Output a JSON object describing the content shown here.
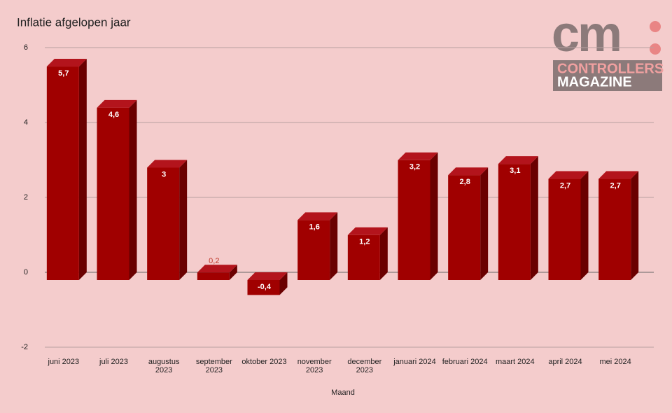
{
  "chart_data": {
    "type": "bar3d",
    "title": "Inflatie afgelopen jaar",
    "x_label": "Maand",
    "categories": [
      "juni 2023",
      "juli 2023",
      "augustus\n2023",
      "september\n2023",
      "oktober 2023",
      "november\n2023",
      "december\n2023",
      "januari 2024",
      "februari 2024",
      "maart 2024",
      "april 2024",
      "mei 2024"
    ],
    "values": [
      5.7,
      4.6,
      3,
      0.2,
      -0.4,
      1.6,
      1.2,
      3.2,
      2.8,
      3.1,
      2.7,
      2.7
    ],
    "value_labels": [
      "5,7",
      "4,6",
      "3",
      "0,2",
      "-0,4",
      "1,6",
      "1,2",
      "3,2",
      "2,8",
      "3,1",
      "2,7",
      "2,7"
    ],
    "color": "#a00000",
    "ylim": [
      -2,
      6
    ],
    "yticks": [
      -2,
      0,
      2,
      4,
      6
    ],
    "grid": true
  },
  "logo": {
    "mark": "cm",
    "line1": "CONTROLLERS",
    "line2": "MAGAZINE"
  }
}
